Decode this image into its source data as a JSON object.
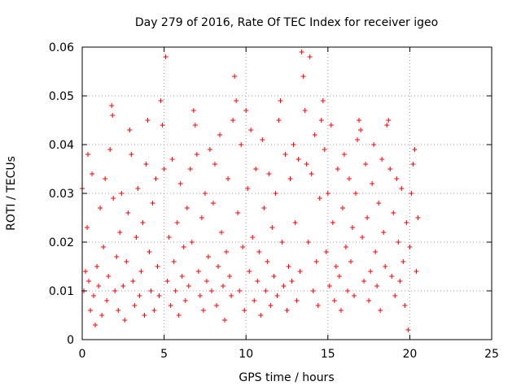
{
  "chart_data": {
    "type": "scatter",
    "title": "Day 279 of 2016, Rate Of TEC Index for receiver igeo",
    "xlabel": "GPS time / hours",
    "ylabel": "ROTI / TECUs",
    "xlim": [
      0,
      25
    ],
    "ylim": [
      0,
      0.06
    ],
    "x_ticks": [
      0,
      5,
      10,
      15,
      20,
      25
    ],
    "x_tick_labels": [
      "0",
      "5",
      "10",
      "15",
      "20",
      "25"
    ],
    "y_ticks": [
      0,
      0.01,
      0.02,
      0.03,
      0.04,
      0.05,
      0.06
    ],
    "y_tick_labels": [
      "0",
      "0.01",
      "0.02",
      "0.03",
      "0.04",
      "0.05",
      "0.06"
    ],
    "grid": true,
    "marker": "+",
    "series": [
      {
        "name": "ROTI",
        "color": "#ff0000",
        "points": [
          [
            0.0,
            0.031
          ],
          [
            0.1,
            0.01
          ],
          [
            0.2,
            0.014
          ],
          [
            0.3,
            0.023
          ],
          [
            0.35,
            0.038
          ],
          [
            0.4,
            0.012
          ],
          [
            0.5,
            0.006
          ],
          [
            0.6,
            0.034
          ],
          [
            0.7,
            0.009
          ],
          [
            0.8,
            0.003
          ],
          [
            0.9,
            0.015
          ],
          [
            1.0,
            0.011
          ],
          [
            1.1,
            0.027
          ],
          [
            1.2,
            0.005
          ],
          [
            1.3,
            0.019
          ],
          [
            1.4,
            0.033
          ],
          [
            1.5,
            0.008
          ],
          [
            1.6,
            0.013
          ],
          [
            1.7,
            0.039
          ],
          [
            1.8,
            0.048
          ],
          [
            1.85,
            0.046
          ],
          [
            1.9,
            0.029
          ],
          [
            2.0,
            0.01
          ],
          [
            2.1,
            0.017
          ],
          [
            2.2,
            0.006
          ],
          [
            2.3,
            0.022
          ],
          [
            2.4,
            0.03
          ],
          [
            2.5,
            0.011
          ],
          [
            2.6,
            0.004
          ],
          [
            2.7,
            0.016
          ],
          [
            2.8,
            0.026
          ],
          [
            2.9,
            0.043
          ],
          [
            3.0,
            0.038
          ],
          [
            3.1,
            0.012
          ],
          [
            3.2,
            0.007
          ],
          [
            3.3,
            0.021
          ],
          [
            3.4,
            0.031
          ],
          [
            3.5,
            0.009
          ],
          [
            3.6,
            0.014
          ],
          [
            3.7,
            0.024
          ],
          [
            3.8,
            0.005
          ],
          [
            3.9,
            0.036
          ],
          [
            4.0,
            0.045
          ],
          [
            4.1,
            0.018
          ],
          [
            4.2,
            0.01
          ],
          [
            4.3,
            0.028
          ],
          [
            4.4,
            0.006
          ],
          [
            4.5,
            0.033
          ],
          [
            4.6,
            0.015
          ],
          [
            4.7,
            0.009
          ],
          [
            4.8,
            0.049
          ],
          [
            4.9,
            0.044
          ],
          [
            5.0,
            0.035
          ],
          [
            5.1,
            0.058
          ],
          [
            5.2,
            0.012
          ],
          [
            5.3,
            0.021
          ],
          [
            5.4,
            0.007
          ],
          [
            5.5,
            0.037
          ],
          [
            5.6,
            0.016
          ],
          [
            5.7,
            0.01
          ],
          [
            5.8,
            0.024
          ],
          [
            5.9,
            0.005
          ],
          [
            6.0,
            0.032
          ],
          [
            6.1,
            0.013
          ],
          [
            6.2,
            0.019
          ],
          [
            6.3,
            0.008
          ],
          [
            6.4,
            0.027
          ],
          [
            6.5,
            0.011
          ],
          [
            6.6,
            0.035
          ],
          [
            6.7,
            0.02
          ],
          [
            6.8,
            0.047
          ],
          [
            6.9,
            0.044
          ],
          [
            7.0,
            0.038
          ],
          [
            7.1,
            0.014
          ],
          [
            7.2,
            0.009
          ],
          [
            7.3,
            0.025
          ],
          [
            7.4,
            0.006
          ],
          [
            7.5,
            0.03
          ],
          [
            7.6,
            0.012
          ],
          [
            7.7,
            0.017
          ],
          [
            7.8,
            0.039
          ],
          [
            7.9,
            0.01
          ],
          [
            8.0,
            0.028
          ],
          [
            8.1,
            0.036
          ],
          [
            8.2,
            0.007
          ],
          [
            8.3,
            0.015
          ],
          [
            8.4,
            0.042
          ],
          [
            8.5,
            0.022
          ],
          [
            8.6,
            0.011
          ],
          [
            8.7,
            0.004
          ],
          [
            8.8,
            0.018
          ],
          [
            8.9,
            0.033
          ],
          [
            9.0,
            0.013
          ],
          [
            9.1,
            0.009
          ],
          [
            9.2,
            0.045
          ],
          [
            9.3,
            0.054
          ],
          [
            9.4,
            0.049
          ],
          [
            9.5,
            0.026
          ],
          [
            9.6,
            0.01
          ],
          [
            9.7,
            0.04
          ],
          [
            9.8,
            0.019
          ],
          [
            9.9,
            0.006
          ],
          [
            10.0,
            0.047
          ],
          [
            10.1,
            0.031
          ],
          [
            10.2,
            0.014
          ],
          [
            10.3,
            0.043
          ],
          [
            10.4,
            0.021
          ],
          [
            10.5,
            0.008
          ],
          [
            10.6,
            0.035
          ],
          [
            10.7,
            0.012
          ],
          [
            10.8,
            0.018
          ],
          [
            10.9,
            0.005
          ],
          [
            11.0,
            0.041
          ],
          [
            11.1,
            0.027
          ],
          [
            11.2,
            0.01
          ],
          [
            11.3,
            0.016
          ],
          [
            11.4,
            0.034
          ],
          [
            11.5,
            0.007
          ],
          [
            11.6,
            0.023
          ],
          [
            11.7,
            0.013
          ],
          [
            11.8,
            0.03
          ],
          [
            11.9,
            0.009
          ],
          [
            12.0,
            0.045
          ],
          [
            12.1,
            0.049
          ],
          [
            12.2,
            0.02
          ],
          [
            12.3,
            0.011
          ],
          [
            12.4,
            0.038
          ],
          [
            12.5,
            0.006
          ],
          [
            12.6,
            0.015
          ],
          [
            12.7,
            0.033
          ],
          [
            12.8,
            0.012
          ],
          [
            12.9,
            0.04
          ],
          [
            13.0,
            0.024
          ],
          [
            13.1,
            0.008
          ],
          [
            13.2,
            0.037
          ],
          [
            13.3,
            0.014
          ],
          [
            13.4,
            0.059
          ],
          [
            13.5,
            0.054
          ],
          [
            13.6,
            0.047
          ],
          [
            13.7,
            0.036
          ],
          [
            13.8,
            0.02
          ],
          [
            13.9,
            0.058
          ],
          [
            14.0,
            0.034
          ],
          [
            14.1,
            0.01
          ],
          [
            14.2,
            0.042
          ],
          [
            14.3,
            0.016
          ],
          [
            14.4,
            0.007
          ],
          [
            14.5,
            0.029
          ],
          [
            14.6,
            0.045
          ],
          [
            14.7,
            0.049
          ],
          [
            14.8,
            0.039
          ],
          [
            14.9,
            0.018
          ],
          [
            15.0,
            0.03
          ],
          [
            15.1,
            0.011
          ],
          [
            15.2,
            0.044
          ],
          [
            15.3,
            0.024
          ],
          [
            15.4,
            0.008
          ],
          [
            15.5,
            0.015
          ],
          [
            15.6,
            0.035
          ],
          [
            15.7,
            0.013
          ],
          [
            15.8,
            0.006
          ],
          [
            15.9,
            0.027
          ],
          [
            16.0,
            0.038
          ],
          [
            16.1,
            0.019
          ],
          [
            16.2,
            0.01
          ],
          [
            16.3,
            0.033
          ],
          [
            16.4,
            0.016
          ],
          [
            16.5,
            0.023
          ],
          [
            16.6,
            0.009
          ],
          [
            16.7,
            0.03
          ],
          [
            16.8,
            0.041
          ],
          [
            16.9,
            0.045
          ],
          [
            17.0,
            0.043
          ],
          [
            17.1,
            0.021
          ],
          [
            17.2,
            0.012
          ],
          [
            17.3,
            0.036
          ],
          [
            17.4,
            0.025
          ],
          [
            17.5,
            0.008
          ],
          [
            17.6,
            0.014
          ],
          [
            17.7,
            0.032
          ],
          [
            17.8,
            0.04
          ],
          [
            17.9,
            0.018
          ],
          [
            18.0,
            0.011
          ],
          [
            18.1,
            0.028
          ],
          [
            18.2,
            0.006
          ],
          [
            18.3,
            0.037
          ],
          [
            18.4,
            0.022
          ],
          [
            18.5,
            0.015
          ],
          [
            18.6,
            0.044
          ],
          [
            18.7,
            0.045
          ],
          [
            18.8,
            0.035
          ],
          [
            18.9,
            0.013
          ],
          [
            19.0,
            0.026
          ],
          [
            19.1,
            0.009
          ],
          [
            19.2,
            0.033
          ],
          [
            19.3,
            0.02
          ],
          [
            19.4,
            0.012
          ],
          [
            19.5,
            0.031
          ],
          [
            19.6,
            0.016
          ],
          [
            19.7,
            0.007
          ],
          [
            19.8,
            0.024
          ],
          [
            19.9,
            0.002
          ],
          [
            20.0,
            0.019
          ],
          [
            20.1,
            0.03
          ],
          [
            20.2,
            0.036
          ],
          [
            20.3,
            0.039
          ],
          [
            20.4,
            0.014
          ],
          [
            20.5,
            0.025
          ]
        ]
      }
    ]
  }
}
